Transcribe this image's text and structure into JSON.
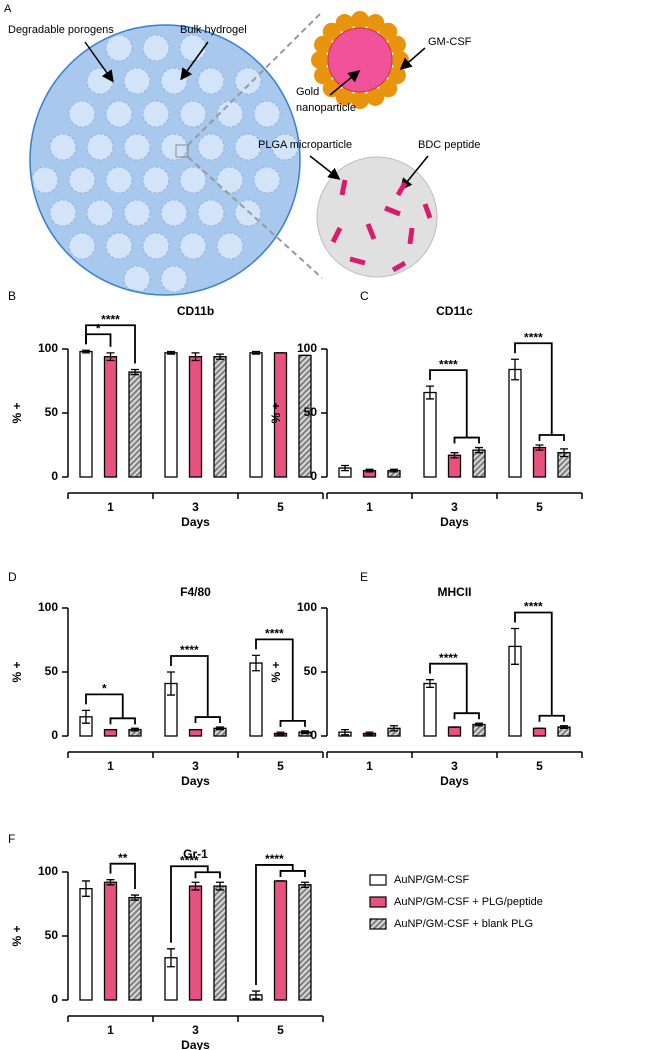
{
  "panel_a": {
    "letter": "A",
    "porogens_label": "Degradable porogens",
    "hydrogel_label": "Bulk hydrogel",
    "gmcsf_label": "GM-CSF",
    "gold_label": [
      "Gold",
      "nanoparticle"
    ],
    "plga_label": "PLGA microparticle",
    "bdc_label": "BDC peptide"
  },
  "chart_data": [
    {
      "type": "bar",
      "letter": "B",
      "title": "CD11b",
      "y_label": "% +",
      "x_label": "Days",
      "categories": [
        "1",
        "3",
        "5"
      ],
      "ylim": [
        0,
        100
      ],
      "yticks": [
        0,
        50,
        100
      ],
      "series": [
        {
          "name": "AuNP/GM-CSF",
          "color": "#ffffff",
          "values": [
            98,
            97,
            97
          ],
          "errors": [
            1,
            1,
            1
          ]
        },
        {
          "name": "AuNP/GM-CSF + PLG/peptide",
          "color": "#e8527f",
          "values": [
            94,
            94,
            97
          ],
          "errors": [
            3,
            3,
            0
          ]
        },
        {
          "name": "AuNP/GM-CSF + blank PLG",
          "color": "#7f7f7f",
          "pattern": "hatch",
          "values": [
            82,
            94,
            95
          ],
          "errors": [
            2,
            2,
            0
          ]
        }
      ],
      "annotations": [
        {
          "label": "****",
          "category": 0,
          "from": 0,
          "to": [
            2
          ]
        },
        {
          "label": "*",
          "category": 0,
          "from": 0,
          "to": [
            1
          ]
        }
      ]
    },
    {
      "type": "bar",
      "letter": "C",
      "title": "CD11c",
      "y_label": "% +",
      "x_label": "Days",
      "categories": [
        "1",
        "3",
        "5"
      ],
      "ylim": [
        0,
        100
      ],
      "yticks": [
        0,
        50,
        100
      ],
      "series": [
        {
          "name": "AuNP/GM-CSF",
          "color": "#ffffff",
          "values": [
            7,
            66,
            84
          ],
          "errors": [
            2,
            5,
            8
          ]
        },
        {
          "name": "AuNP/GM-CSF + PLG/peptide",
          "color": "#e8527f",
          "values": [
            5,
            17,
            23
          ],
          "errors": [
            1,
            2,
            2
          ]
        },
        {
          "name": "AuNP/GM-CSF + blank PLG",
          "color": "#7f7f7f",
          "pattern": "hatch",
          "values": [
            5,
            21,
            19
          ],
          "errors": [
            1,
            2,
            3
          ]
        }
      ],
      "annotations": [
        {
          "label": "****",
          "category": 1,
          "from": 0,
          "to": [
            1,
            2
          ]
        },
        {
          "label": "****",
          "category": 2,
          "from": 0,
          "to": [
            1,
            2
          ]
        }
      ]
    },
    {
      "type": "bar",
      "letter": "D",
      "title": "F4/80",
      "y_label": "% +",
      "x_label": "Days",
      "categories": [
        "1",
        "3",
        "5"
      ],
      "ylim": [
        0,
        100
      ],
      "yticks": [
        0,
        50,
        100
      ],
      "series": [
        {
          "name": "AuNP/GM-CSF",
          "color": "#ffffff",
          "values": [
            15,
            41,
            57
          ],
          "errors": [
            5,
            9,
            6
          ]
        },
        {
          "name": "AuNP/GM-CSF + PLG/peptide",
          "color": "#e8527f",
          "values": [
            5,
            5,
            2
          ],
          "errors": [
            0,
            0,
            1
          ]
        },
        {
          "name": "AuNP/GM-CSF + blank PLG",
          "color": "#7f7f7f",
          "pattern": "hatch",
          "values": [
            5,
            6,
            3
          ],
          "errors": [
            1,
            1,
            1
          ]
        }
      ],
      "annotations": [
        {
          "label": "*",
          "category": 0,
          "from": 0,
          "to": [
            1,
            2
          ]
        },
        {
          "label": "****",
          "category": 1,
          "from": 0,
          "to": [
            1,
            2
          ]
        },
        {
          "label": "****",
          "category": 2,
          "from": 0,
          "to": [
            1,
            2
          ]
        }
      ]
    },
    {
      "type": "bar",
      "letter": "E",
      "title": "MHCII",
      "y_label": "% +",
      "x_label": "Days",
      "categories": [
        "1",
        "3",
        "5"
      ],
      "ylim": [
        0,
        100
      ],
      "yticks": [
        0,
        50,
        100
      ],
      "series": [
        {
          "name": "AuNP/GM-CSF",
          "color": "#ffffff",
          "values": [
            3,
            41,
            70
          ],
          "errors": [
            2,
            3,
            14
          ]
        },
        {
          "name": "AuNP/GM-CSF + PLG/peptide",
          "color": "#e8527f",
          "values": [
            2,
            7,
            6
          ],
          "errors": [
            1,
            0,
            0
          ]
        },
        {
          "name": "AuNP/GM-CSF + blank PLG",
          "color": "#7f7f7f",
          "pattern": "hatch",
          "values": [
            6,
            9,
            7
          ],
          "errors": [
            2,
            1,
            1
          ]
        }
      ],
      "annotations": [
        {
          "label": "****",
          "category": 1,
          "from": 0,
          "to": [
            1,
            2
          ]
        },
        {
          "label": "****",
          "category": 2,
          "from": 0,
          "to": [
            1,
            2
          ]
        }
      ]
    },
    {
      "type": "bar",
      "letter": "F",
      "title": "Gr-1",
      "y_label": "% +",
      "x_label": "Days",
      "categories": [
        "1",
        "3",
        "5"
      ],
      "ylim": [
        0,
        100
      ],
      "yticks": [
        0,
        50,
        100
      ],
      "legend": "right",
      "series": [
        {
          "name": "AuNP/GM-CSF",
          "color": "#ffffff",
          "values": [
            87,
            33,
            4
          ],
          "errors": [
            6,
            7,
            3
          ]
        },
        {
          "name": "AuNP/GM-CSF + PLG/peptide",
          "color": "#e8527f",
          "values": [
            92,
            89,
            93
          ],
          "errors": [
            2,
            3,
            0
          ]
        },
        {
          "name": "AuNP/GM-CSF + blank PLG",
          "color": "#7f7f7f",
          "pattern": "hatch",
          "values": [
            80,
            89,
            90
          ],
          "errors": [
            2,
            3,
            2
          ]
        }
      ],
      "annotations": [
        {
          "label": "**",
          "category": 0,
          "from": 1,
          "to": [
            2
          ]
        },
        {
          "label": "****",
          "category": 1,
          "from": 0,
          "to": [
            1,
            2
          ]
        },
        {
          "label": "****",
          "category": 2,
          "from": 0,
          "to": [
            1,
            2
          ]
        }
      ]
    }
  ]
}
